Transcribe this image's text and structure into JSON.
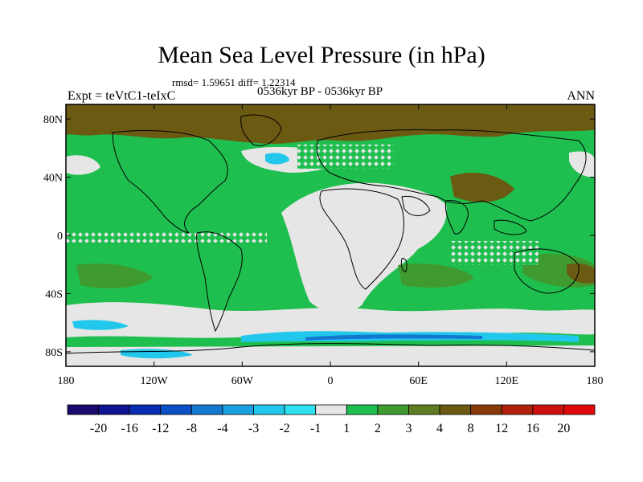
{
  "title": "Mean Sea Level Pressure (in hPa)",
  "stats": "rmsd= 1.59651 diff= 1.22314",
  "experiment": "Expt = teVtC1-teIxC",
  "period": "0536kyr BP - 0536kyr BP",
  "season": "ANN",
  "lat_labels": [
    "80N",
    "40N",
    "0",
    "40S",
    "80S"
  ],
  "lat_values": [
    80,
    40,
    0,
    -40,
    -80
  ],
  "lon_labels": [
    "180",
    "120W",
    "60W",
    "0",
    "60E",
    "120E",
    "180"
  ],
  "lon_values": [
    -180,
    -120,
    -60,
    0,
    60,
    120,
    180
  ],
  "colorbar": {
    "labels": [
      "-20",
      "-16",
      "-12",
      "-8",
      "-4",
      "-3",
      "-2",
      "-1",
      "1",
      "2",
      "3",
      "4",
      "8",
      "12",
      "16",
      "20"
    ],
    "colors": [
      "#1a0a6b",
      "#10138f",
      "#0a2cb0",
      "#0b4fc4",
      "#1477d0",
      "#1aa0e0",
      "#22c8ec",
      "#2ee0f0",
      "#e6e6e6",
      "#1fbf4f",
      "#3f9a2f",
      "#5e7d22",
      "#6b5a12",
      "#8a3a08",
      "#b0200a",
      "#cc1010",
      "#e00a0a"
    ]
  },
  "fields": {
    "north_cap": "#6b5a12",
    "ocean_anomaly": "#1fbf4f",
    "atlantic_anomaly": "#e6e6e6",
    "southern_ocean": "#e6e6e6",
    "ice_edge": "#22c8ec"
  }
}
